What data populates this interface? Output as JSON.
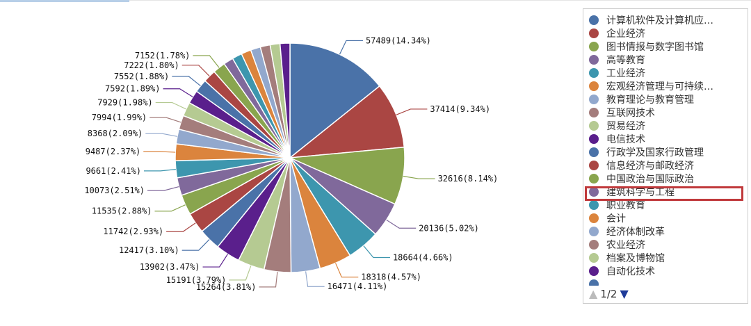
{
  "chart_data": {
    "type": "pie",
    "title": "",
    "slices": [
      {
        "name": "计算机软件及计算机应…",
        "value": 57489,
        "label": "57489(14.34%)",
        "color": "#4a72a8"
      },
      {
        "name": "企业经济",
        "value": 37414,
        "label": "37414(9.34%)",
        "color": "#aa4643"
      },
      {
        "name": "图书情报与数字图书馆",
        "value": 32616,
        "label": "32616(8.14%)",
        "color": "#89a54e"
      },
      {
        "name": "高等教育",
        "value": 20136,
        "label": "20136(5.02%)",
        "color": "#80699b"
      },
      {
        "name": "工业经济",
        "value": 18664,
        "label": "18664(4.66%)",
        "color": "#3d96ae"
      },
      {
        "name": "宏观经济管理与可持续…",
        "value": 18318,
        "label": "18318(4.57%)",
        "color": "#db843d"
      },
      {
        "name": "教育理论与教育管理",
        "value": 16471,
        "label": "16471(4.11%)",
        "color": "#92a8cd"
      },
      {
        "name": "互联网技术",
        "value": 15264,
        "label": "15264(3.81%)",
        "color": "#a47d7c"
      },
      {
        "name": "贸易经济",
        "value": 15191,
        "label": "15191(3.79%)",
        "color": "#b5ca92"
      },
      {
        "name": "电信技术",
        "value": 13902,
        "label": "13902(3.47%)",
        "color": "#5a1f8c"
      },
      {
        "name": "行政学及国家行政管理",
        "value": 12417,
        "label": "12417(3.10%)",
        "color": "#4a72a8"
      },
      {
        "name": "信息经济与邮政经济",
        "value": 11742,
        "label": "11742(2.93%)",
        "color": "#aa4643"
      },
      {
        "name": "中国政治与国际政治",
        "value": 11535,
        "label": "11535(2.88%)",
        "color": "#89a54e"
      },
      {
        "name": "建筑科学与工程",
        "value": 10073,
        "label": "10073(2.51%)",
        "color": "#80699b"
      },
      {
        "name": "职业教育",
        "value": 9661,
        "label": "9661(2.41%)",
        "color": "#3d96ae"
      },
      {
        "name": "会计",
        "value": 9487,
        "label": "9487(2.37%)",
        "color": "#db843d"
      },
      {
        "name": "经济体制改革",
        "value": 8368,
        "label": "8368(2.09%)",
        "color": "#92a8cd"
      },
      {
        "name": "农业经济",
        "value": 7994,
        "label": "7994(1.99%)",
        "color": "#a47d7c"
      },
      {
        "name": "档案及博物馆",
        "value": 7929,
        "label": "7929(1.98%)",
        "color": "#b5ca92"
      },
      {
        "name": "自动化技术",
        "value": 7592,
        "label": "7592(1.89%)",
        "color": "#5a1f8c"
      },
      {
        "name": "",
        "value": 7552,
        "label": "7552(1.88%)",
        "color": "#4a72a8"
      },
      {
        "name": "",
        "value": 7222,
        "label": "7222(1.80%)",
        "color": "#aa4643"
      },
      {
        "name": "",
        "value": 7152,
        "label": "7152(1.78%)",
        "color": "#89a54e"
      },
      {
        "name": "",
        "value": 5600,
        "label": "",
        "color": "#80699b"
      },
      {
        "name": "",
        "value": 5600,
        "label": "",
        "color": "#3d96ae"
      },
      {
        "name": "",
        "value": 5600,
        "label": "",
        "color": "#db843d"
      },
      {
        "name": "",
        "value": 5600,
        "label": "",
        "color": "#92a8cd"
      },
      {
        "name": "",
        "value": 5600,
        "label": "",
        "color": "#a47d7c"
      },
      {
        "name": "",
        "value": 5600,
        "label": "",
        "color": "#b5ca92"
      },
      {
        "name": "",
        "value": 5600,
        "label": "",
        "color": "#5a1f8c"
      }
    ],
    "legend": {
      "position": "right",
      "visible_count": 20,
      "highlighted": "建筑科学与工程"
    }
  },
  "pager": {
    "prev_icon": "triangle-up-icon",
    "next_icon": "triangle-down-icon",
    "text": "1/2",
    "prev_glyph": "▲",
    "next_glyph": "▼"
  }
}
